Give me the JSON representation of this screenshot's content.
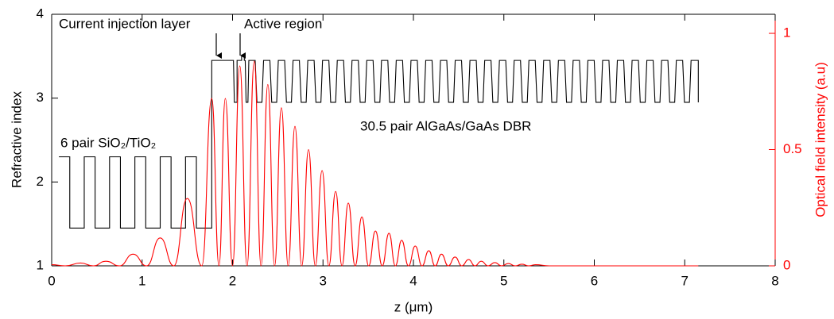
{
  "chart_data": {
    "type": "line",
    "xlabel": "z (μm)",
    "ylabel": "Refractive index",
    "y2label": "Optical field intensity (a.u)",
    "xlim": [
      0,
      8
    ],
    "xticks": [
      0,
      1,
      2,
      3,
      4,
      5,
      6,
      7,
      8
    ],
    "ylim": [
      1,
      4
    ],
    "yticks": [
      1,
      2,
      3,
      4
    ],
    "y2lim": [
      0,
      1.082
    ],
    "y2ticks": [
      0,
      0.5,
      1
    ],
    "annotations": [
      "Current injection layer",
      "Active region",
      "6 pair SiO₂/TiO₂",
      "30.5 pair AlGaAs/GaAs DBR"
    ],
    "series": [
      {
        "color": "#000000",
        "axis": "y",
        "x": [
          0.08,
          0.2,
          0.2,
          0.36,
          0.36,
          0.48,
          0.48,
          0.64,
          0.64,
          0.76,
          0.76,
          0.92,
          0.92,
          1.04,
          1.04,
          1.2,
          1.2,
          1.32,
          1.32,
          1.48,
          1.48,
          1.6,
          1.6,
          1.77,
          1.77,
          2.01,
          2.02,
          2.05,
          2.05,
          2.1,
          2.1,
          2.13,
          2.13,
          2.14,
          2.15,
          2.17,
          2.18,
          2.25,
          2.27,
          2.325,
          2.343,
          2.413,
          2.433,
          2.488,
          2.506,
          2.576,
          2.596,
          2.651,
          2.669,
          2.739,
          2.759,
          2.814,
          2.832,
          2.902,
          2.922,
          2.977,
          2.995,
          3.065,
          3.085,
          3.14,
          3.158,
          3.228,
          3.248,
          3.303,
          3.321,
          3.391,
          3.411,
          3.466,
          3.484,
          3.554,
          3.574,
          3.629,
          3.647,
          3.717,
          3.737,
          3.792,
          3.81,
          3.88,
          3.9,
          3.955,
          3.973,
          4.043,
          4.063,
          4.118,
          4.136,
          4.206,
          4.226,
          4.281,
          4.299,
          4.369,
          4.389,
          4.444,
          4.462,
          4.532,
          4.552,
          4.607,
          4.625,
          4.695,
          4.715,
          4.77,
          4.788,
          4.858,
          4.878,
          4.933,
          4.951,
          5.021,
          5.041,
          5.096,
          5.114,
          5.184,
          5.204,
          5.259,
          5.277,
          5.347,
          5.367,
          5.422,
          5.44,
          5.51,
          5.53,
          5.585,
          5.603,
          5.673,
          5.693,
          5.748,
          5.766,
          5.836,
          5.856,
          5.911,
          5.929,
          5.999,
          6.019,
          6.074,
          6.092,
          6.162,
          6.182,
          6.237,
          6.255,
          6.325,
          6.345,
          6.4,
          6.418,
          6.488,
          6.508,
          6.563,
          6.581,
          6.651,
          6.671,
          6.726,
          6.744,
          6.814,
          6.834,
          6.889,
          6.907,
          6.977,
          6.997,
          7.052,
          7.07,
          7.15,
          7.15
        ],
        "values": [
          2.3,
          2.3,
          1.45,
          1.45,
          2.3,
          2.3,
          1.45,
          1.45,
          2.3,
          2.3,
          1.45,
          1.45,
          2.3,
          2.3,
          1.45,
          1.45,
          2.3,
          2.3,
          1.45,
          1.45,
          2.3,
          2.3,
          1.45,
          1.45,
          3.45,
          3.45,
          2.95,
          2.95,
          3.45,
          3.45,
          3.5,
          3.5,
          3.45,
          3.45,
          2.95,
          2.95,
          3.45,
          3.45,
          2.95,
          2.95,
          3.45,
          3.45,
          2.95,
          2.95,
          3.45,
          3.45,
          2.95,
          2.95,
          3.45,
          3.45,
          2.95,
          2.95,
          3.45,
          3.45,
          2.95,
          2.95,
          3.45,
          3.45,
          2.95,
          2.95,
          3.45,
          3.45,
          2.95,
          2.95,
          3.45,
          3.45,
          2.95,
          2.95,
          3.45,
          3.45,
          2.95,
          2.95,
          3.45,
          3.45,
          2.95,
          2.95,
          3.45,
          3.45,
          2.95,
          2.95,
          3.45,
          3.45,
          2.95,
          2.95,
          3.45,
          3.45,
          2.95,
          2.95,
          3.45,
          3.45,
          2.95,
          2.95,
          3.45,
          3.45,
          2.95,
          2.95,
          3.45,
          3.45,
          2.95,
          2.95,
          3.45,
          3.45,
          2.95,
          2.95,
          3.45,
          3.45,
          2.95,
          2.95,
          3.45,
          3.45,
          2.95,
          2.95,
          3.45,
          3.45,
          2.95,
          2.95,
          3.45,
          3.45,
          2.95,
          2.95,
          3.45,
          3.45,
          2.95,
          2.95,
          3.45,
          3.45,
          2.95,
          2.95,
          3.45,
          3.45,
          2.95,
          2.95,
          3.45,
          3.45,
          2.95,
          2.95,
          3.45,
          3.45,
          2.95,
          2.95,
          3.45,
          3.45,
          2.95,
          2.95,
          3.45,
          3.45,
          2.95,
          2.95,
          3.45,
          3.45,
          2.95,
          2.95,
          3.45,
          3.45,
          2.95,
          2.95,
          3.45,
          3.45,
          2.95
        ]
      },
      {
        "color": "#ff0000",
        "axis": "y2",
        "x": [
          0,
          0.15,
          0.32,
          0.46,
          0.6,
          0.75,
          0.9,
          1.05,
          1.2,
          1.35,
          1.5,
          1.66,
          1.77,
          1.85,
          1.92,
          2.0,
          2.08,
          2.16,
          2.24,
          2.315,
          2.39,
          2.465,
          2.54,
          2.615,
          2.69,
          2.765,
          2.84,
          2.915,
          2.99,
          3.065,
          3.14,
          3.21,
          3.28,
          3.355,
          3.43,
          3.505,
          3.58,
          3.655,
          3.73,
          3.8,
          3.87,
          3.945,
          4.02,
          4.095,
          4.17,
          4.24,
          4.31,
          4.385,
          4.46,
          4.535,
          4.61,
          4.68,
          4.75,
          4.825,
          4.9,
          4.975,
          5.05,
          5.125,
          5.2,
          5.275,
          5.35,
          5.5,
          7.15
        ],
        "values": [
          0.005,
          0,
          0.012,
          0,
          0.02,
          0,
          0.05,
          0,
          0.12,
          0,
          0.29,
          0,
          0.72,
          0,
          0.72,
          0,
          0.86,
          0,
          0.88,
          0,
          0.78,
          0,
          0.68,
          0,
          0.6,
          0,
          0.5,
          0,
          0.41,
          0,
          0.32,
          0,
          0.27,
          0,
          0.21,
          0,
          0.15,
          0,
          0.14,
          0,
          0.11,
          0,
          0.085,
          0,
          0.065,
          0,
          0.05,
          0,
          0.038,
          0,
          0.027,
          0,
          0.02,
          0,
          0.014,
          0,
          0.01,
          0,
          0.007,
          0,
          0.005,
          0,
          0
        ]
      }
    ]
  }
}
